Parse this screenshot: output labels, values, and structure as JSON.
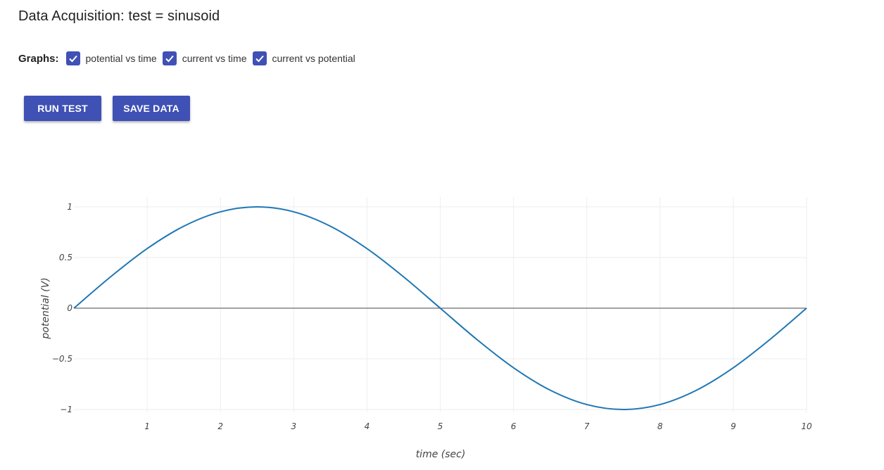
{
  "header": {
    "title": "Data Acquisition: test = sinusoid"
  },
  "graphs": {
    "label": "Graphs:",
    "options": [
      {
        "label": "potential vs time",
        "checked": true
      },
      {
        "label": "current vs time",
        "checked": true
      },
      {
        "label": "current vs potential",
        "checked": true
      }
    ]
  },
  "actions": {
    "run_label": "RUN TEST",
    "save_label": "SAVE DATA"
  },
  "colors": {
    "accent": "#3f51b5",
    "series": "#1f77b4"
  },
  "chart_data": {
    "type": "line",
    "title": "",
    "xlabel": "time (sec)",
    "ylabel": "potential (V)",
    "xlim": [
      0,
      10
    ],
    "ylim": [
      -1,
      1
    ],
    "x_ticks": [
      1,
      2,
      3,
      4,
      5,
      6,
      7,
      8,
      9,
      10
    ],
    "x_tick_labels": [
      "1",
      "2",
      "3",
      "4",
      "5",
      "6",
      "7",
      "8",
      "9",
      "10"
    ],
    "y_ticks": [
      1,
      0.5,
      0,
      -0.5,
      -1
    ],
    "y_tick_labels": [
      "1",
      "0.5",
      "0",
      "−0.5",
      "−1"
    ],
    "grid": true,
    "series": [
      {
        "x": [
          0,
          0.5,
          1,
          1.5,
          2,
          2.5,
          3,
          3.5,
          4,
          4.5,
          5,
          5.5,
          6,
          6.5,
          7,
          7.5,
          8,
          8.5,
          9,
          9.5,
          10
        ],
        "values": [
          0,
          0.309,
          0.588,
          0.809,
          0.951,
          1,
          0.951,
          0.809,
          0.588,
          0.309,
          0,
          -0.309,
          -0.588,
          -0.809,
          -0.951,
          -1,
          -0.951,
          -0.809,
          -0.588,
          -0.309,
          0
        ]
      }
    ]
  }
}
